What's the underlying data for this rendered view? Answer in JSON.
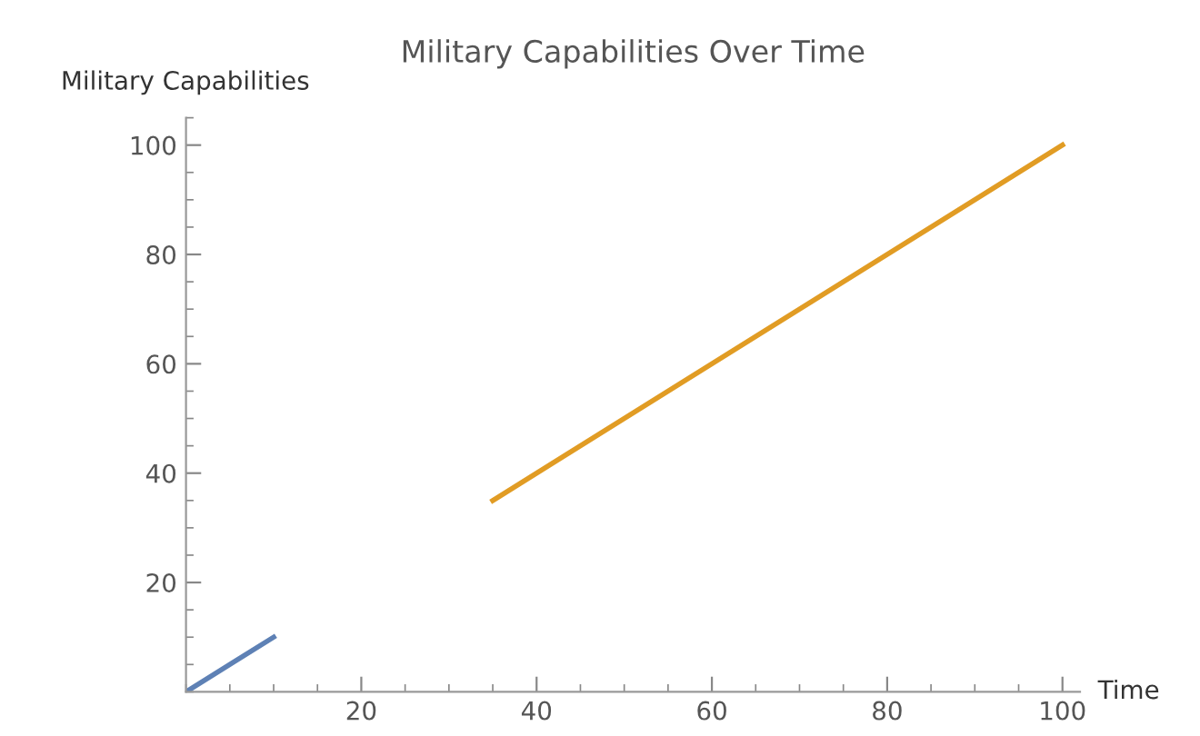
{
  "chart_data": {
    "type": "line",
    "title": "Military Capabilities Over Time",
    "xlabel": "Time",
    "ylabel": "Military Capabilities",
    "series": [
      {
        "color": "#5e81b5",
        "x": [
          0,
          10
        ],
        "values": [
          0,
          10
        ]
      },
      {
        "color": "#e19c24",
        "x": [
          35,
          100
        ],
        "values": [
          35,
          100
        ]
      }
    ],
    "xlim": [
      0,
      102
    ],
    "ylim": [
      0,
      105
    ],
    "xticks": [
      20,
      40,
      60,
      80,
      100
    ],
    "yticks": [
      20,
      40,
      60,
      80,
      100
    ],
    "grid": false,
    "marker": "none",
    "line_style": "solid"
  }
}
